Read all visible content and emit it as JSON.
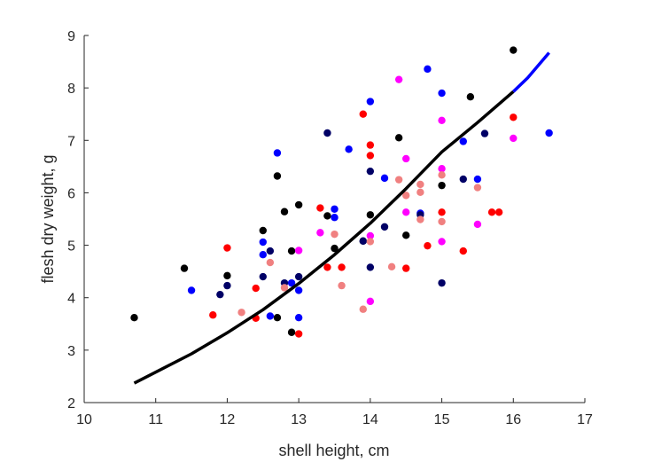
{
  "chart_data": {
    "type": "scatter",
    "title": "",
    "xlabel": "shell height, cm",
    "ylabel": "flesh dry weight, g",
    "xlim": [
      10,
      17
    ],
    "ylim": [
      2,
      9
    ],
    "xticks": [
      "10",
      "11",
      "12",
      "13",
      "14",
      "15",
      "16",
      "17"
    ],
    "yticks": [
      "2",
      "3",
      "4",
      "5",
      "6",
      "7",
      "8",
      "9"
    ],
    "grid": false,
    "legend": "none",
    "series": [
      {
        "color": "#000000",
        "points": [
          [
            10.7,
            3.62
          ],
          [
            11.4,
            4.56
          ],
          [
            12.0,
            4.42
          ],
          [
            12.5,
            5.28
          ],
          [
            12.7,
            6.32
          ],
          [
            12.8,
            5.64
          ],
          [
            12.9,
            4.89
          ],
          [
            13.0,
            5.77
          ],
          [
            12.7,
            3.62
          ],
          [
            12.9,
            3.34
          ],
          [
            13.4,
            5.56
          ],
          [
            13.5,
            4.94
          ],
          [
            13.9,
            5.08
          ],
          [
            14.0,
            5.58
          ],
          [
            14.4,
            7.05
          ],
          [
            14.5,
            5.19
          ],
          [
            15.0,
            6.14
          ],
          [
            15.4,
            7.83
          ],
          [
            16.0,
            8.72
          ]
        ]
      },
      {
        "color": "#0000ff",
        "points": [
          [
            11.5,
            4.14
          ],
          [
            12.5,
            5.06
          ],
          [
            12.5,
            4.82
          ],
          [
            12.6,
            3.65
          ],
          [
            12.7,
            6.76
          ],
          [
            12.9,
            4.28
          ],
          [
            13.0,
            4.14
          ],
          [
            13.0,
            3.62
          ],
          [
            13.5,
            5.69
          ],
          [
            13.5,
            5.53
          ],
          [
            13.7,
            6.83
          ],
          [
            14.0,
            7.74
          ],
          [
            14.2,
            6.28
          ],
          [
            14.7,
            5.61
          ],
          [
            14.8,
            8.36
          ],
          [
            15.0,
            7.9
          ],
          [
            15.3,
            6.98
          ],
          [
            15.5,
            6.26
          ],
          [
            16.5,
            7.14
          ]
        ]
      },
      {
        "color": "#000066",
        "points": [
          [
            11.9,
            4.06
          ],
          [
            12.0,
            4.23
          ],
          [
            12.5,
            4.4
          ],
          [
            12.6,
            4.89
          ],
          [
            12.8,
            4.28
          ],
          [
            13.0,
            4.4
          ],
          [
            13.4,
            7.14
          ],
          [
            13.9,
            5.08
          ],
          [
            14.0,
            6.41
          ],
          [
            14.0,
            4.58
          ],
          [
            14.2,
            5.35
          ],
          [
            14.7,
            5.58
          ],
          [
            15.0,
            4.28
          ],
          [
            15.3,
            6.26
          ],
          [
            15.6,
            7.13
          ]
        ]
      },
      {
        "color": "#ff0000",
        "points": [
          [
            11.8,
            3.67
          ],
          [
            12.0,
            4.95
          ],
          [
            12.4,
            4.18
          ],
          [
            12.4,
            3.61
          ],
          [
            13.0,
            3.31
          ],
          [
            13.3,
            5.71
          ],
          [
            13.4,
            4.58
          ],
          [
            13.6,
            4.58
          ],
          [
            13.9,
            7.5
          ],
          [
            14.0,
            6.91
          ],
          [
            14.0,
            6.71
          ],
          [
            14.5,
            4.56
          ],
          [
            14.8,
            4.99
          ],
          [
            15.0,
            5.63
          ],
          [
            15.3,
            4.89
          ],
          [
            15.7,
            5.63
          ],
          [
            15.8,
            5.63
          ],
          [
            16.0,
            7.44
          ]
        ]
      },
      {
        "color": "#ff00ff",
        "points": [
          [
            13.0,
            4.9
          ],
          [
            13.3,
            5.24
          ],
          [
            14.0,
            5.18
          ],
          [
            14.0,
            3.93
          ],
          [
            14.4,
            8.16
          ],
          [
            14.5,
            6.65
          ],
          [
            14.5,
            5.63
          ],
          [
            15.0,
            7.38
          ],
          [
            15.0,
            6.46
          ],
          [
            15.0,
            5.07
          ],
          [
            15.5,
            5.4
          ],
          [
            16.0,
            7.04
          ]
        ]
      },
      {
        "color": "#f08080",
        "points": [
          [
            12.2,
            3.72
          ],
          [
            12.6,
            4.67
          ],
          [
            12.8,
            4.19
          ],
          [
            13.5,
            5.21
          ],
          [
            13.6,
            4.23
          ],
          [
            13.9,
            3.78
          ],
          [
            14.0,
            5.07
          ],
          [
            14.3,
            4.59
          ],
          [
            14.4,
            6.25
          ],
          [
            14.5,
            5.95
          ],
          [
            14.7,
            6.16
          ],
          [
            14.7,
            6.01
          ],
          [
            14.7,
            5.49
          ],
          [
            15.0,
            6.34
          ],
          [
            15.0,
            5.45
          ],
          [
            15.5,
            6.1
          ]
        ]
      }
    ],
    "fit": {
      "color": "#000000",
      "x": [
        10.7,
        11.0,
        11.5,
        12.0,
        12.5,
        13.0,
        13.5,
        14.0,
        14.5,
        15.0,
        15.5,
        16.0
      ],
      "y": [
        2.37,
        2.58,
        2.93,
        3.33,
        3.77,
        4.27,
        4.82,
        5.42,
        6.08,
        6.78,
        7.34,
        7.93
      ]
    },
    "fit_extension": {
      "color": "#0000ff",
      "x": [
        16.0,
        16.2,
        16.5
      ],
      "y": [
        7.93,
        8.19,
        8.67
      ]
    }
  }
}
